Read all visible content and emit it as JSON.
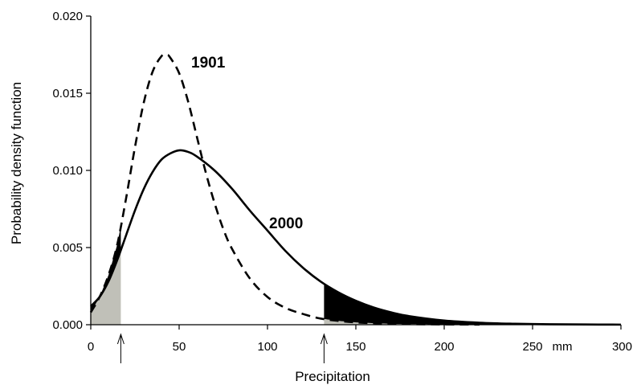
{
  "chart_data": {
    "type": "line",
    "title": "",
    "xlabel": "Precipitation",
    "ylabel": "Probability density function",
    "x_unit_label": "mm",
    "xlim": [
      0,
      300
    ],
    "ylim": [
      0,
      0.02
    ],
    "x_ticks": [
      0,
      50,
      100,
      150,
      200,
      250,
      300
    ],
    "y_ticks": [
      "0.000",
      "0.005",
      "0.010",
      "0.015",
      "0.020"
    ],
    "grid": false,
    "series": [
      {
        "name": "1901",
        "style": "dashed",
        "x": [
          0,
          5,
          10,
          15,
          20,
          25,
          30,
          35,
          40,
          43,
          45,
          50,
          55,
          60,
          65,
          70,
          75,
          80,
          90,
          100,
          110,
          120,
          130,
          140,
          150,
          160,
          170,
          180,
          200,
          220
        ],
        "values": [
          0.0008,
          0.0018,
          0.0032,
          0.0052,
          0.0082,
          0.0115,
          0.0144,
          0.0164,
          0.0174,
          0.0175,
          0.0173,
          0.0163,
          0.0145,
          0.0122,
          0.0099,
          0.0079,
          0.0062,
          0.0049,
          0.003,
          0.0018,
          0.0011,
          0.0007,
          0.0004,
          0.00025,
          0.00015,
          0.0001,
          6e-05,
          4e-05,
          2e-05,
          1e-05
        ]
      },
      {
        "name": "2000",
        "style": "solid",
        "x": [
          0,
          5,
          10,
          15,
          20,
          25,
          30,
          35,
          40,
          45,
          50,
          55,
          60,
          70,
          80,
          90,
          100,
          110,
          120,
          130,
          140,
          150,
          160,
          170,
          180,
          200,
          220,
          240,
          260,
          280,
          300
        ],
        "values": [
          0.0012,
          0.0018,
          0.0028,
          0.0042,
          0.0058,
          0.0074,
          0.0088,
          0.0099,
          0.0107,
          0.0111,
          0.0113,
          0.0112,
          0.0109,
          0.01,
          0.0088,
          0.0074,
          0.0061,
          0.0048,
          0.0037,
          0.0028,
          0.0021,
          0.00155,
          0.00112,
          0.0008,
          0.00056,
          0.00027,
          0.00013,
          6e-05,
          3e-05,
          1.5e-05,
          7e-06
        ]
      }
    ],
    "shaded_regions": [
      {
        "from": 0,
        "to": 17,
        "fill": "#c0c0b8"
      },
      {
        "from": 132,
        "to": 300,
        "fill": "#000000"
      }
    ],
    "markers": [
      17,
      132
    ],
    "colors": {
      "line": "#000000",
      "light_fill": "#c0c0b8",
      "dark_fill": "#000000"
    }
  }
}
